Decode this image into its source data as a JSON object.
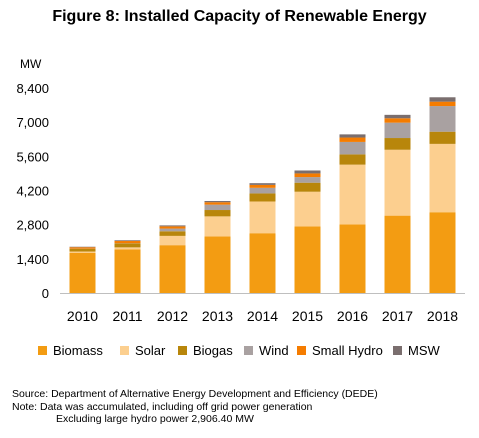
{
  "title": "Figure 8: Installed Capacity of Renewable Energy",
  "chart_data": {
    "type": "bar",
    "stacked": true,
    "title": "Figure 8: Installed Capacity of Renewable Energy",
    "ylabel": "MW",
    "xlabel": "",
    "ylim": [
      0,
      8400
    ],
    "yticks": [
      0,
      1400,
      2800,
      4200,
      5600,
      7000,
      8400
    ],
    "ytick_labels": [
      "0",
      "1,400",
      "2,800",
      "4,200",
      "5,600",
      "7,000",
      "8,400"
    ],
    "grid": false,
    "legend_position": "bottom",
    "categories": [
      "2010",
      "2011",
      "2012",
      "2013",
      "2014",
      "2015",
      "2016",
      "2017",
      "2018"
    ],
    "series": [
      {
        "name": "Biomass",
        "color": "#f39c12",
        "values": [
          1650,
          1790,
          1960,
          2320,
          2450,
          2730,
          2810,
          3170,
          3310
        ]
      },
      {
        "name": "Solar",
        "color": "#fccf8f",
        "values": [
          50,
          80,
          380,
          820,
          1300,
          1420,
          2450,
          2700,
          2800
        ]
      },
      {
        "name": "Biogas",
        "color": "#b8860b",
        "values": [
          110,
          160,
          190,
          260,
          330,
          370,
          420,
          480,
          500
        ]
      },
      {
        "name": "Wind",
        "color": "#a9a1a1",
        "values": [
          5,
          10,
          110,
          220,
          230,
          230,
          510,
          630,
          1050
        ]
      },
      {
        "name": "Small Hydro",
        "color": "#f57c00",
        "values": [
          60,
          90,
          90,
          100,
          120,
          150,
          180,
          180,
          180
        ]
      },
      {
        "name": "MSW",
        "color": "#7a6e6e",
        "values": [
          20,
          30,
          40,
          50,
          70,
          120,
          130,
          140,
          180
        ]
      }
    ]
  },
  "footer": {
    "source": "Source: Department of Alternative Energy Development and Efficiency (DEDE)",
    "note_line1": "Note: Data was accumulated, including off grid power generation",
    "note_line2": "Excluding  large hydro power 2,906.40 MW"
  }
}
